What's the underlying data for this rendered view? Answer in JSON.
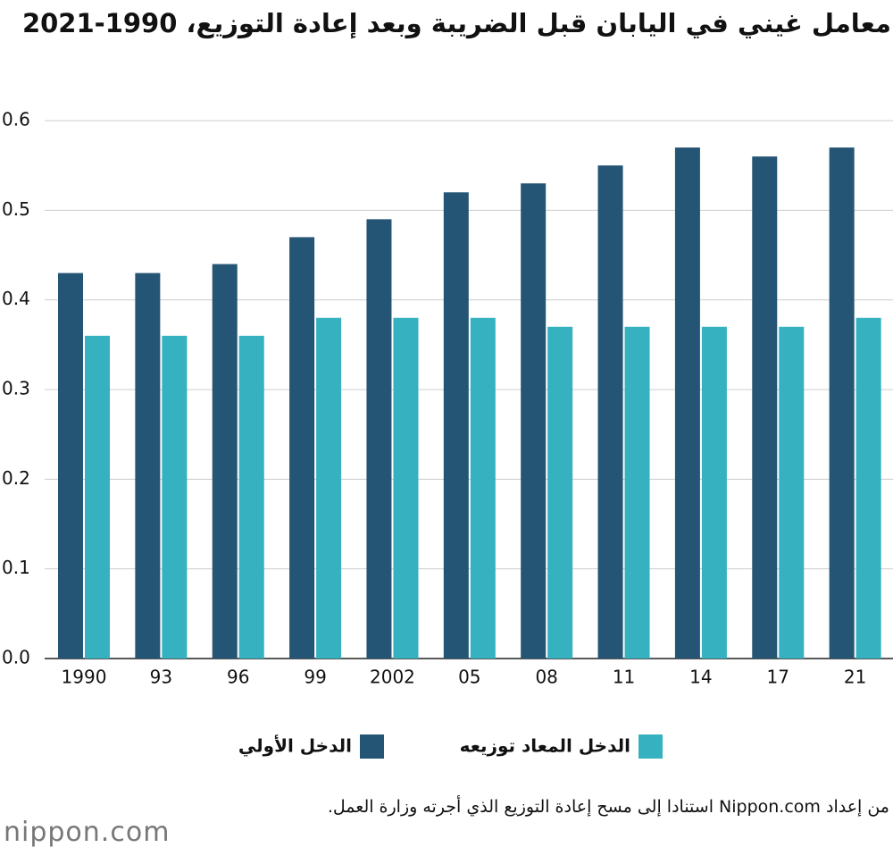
{
  "chart_data": {
    "type": "bar",
    "title": "معامل غيني في اليابان قبل الضريبة وبعد إعادة التوزيع، 1990-2021",
    "categories": [
      "1990",
      "93",
      "96",
      "99",
      "2002",
      "05",
      "08",
      "11",
      "14",
      "17",
      "21"
    ],
    "series": [
      {
        "name": "الدخل الأولي",
        "color": "#245574",
        "values": [
          0.43,
          0.43,
          0.44,
          0.47,
          0.49,
          0.52,
          0.53,
          0.55,
          0.57,
          0.56,
          0.57
        ]
      },
      {
        "name": "الدخل المعاد توزيعه",
        "color": "#35b1c0",
        "values": [
          0.36,
          0.36,
          0.36,
          0.38,
          0.38,
          0.38,
          0.37,
          0.37,
          0.37,
          0.37,
          0.38
        ]
      }
    ],
    "ylim": [
      0,
      0.6
    ],
    "yticks": [
      {
        "value": 0,
        "label": "0.0"
      },
      0.1,
      0.2,
      0.3,
      0.4,
      0.5,
      0.6
    ],
    "grid": true,
    "source": "من إعداد Nippon.com استنادا إلى مسح إعادة التوزيع الذي أجرته وزارة العمل.",
    "logo": "nippon.com"
  }
}
